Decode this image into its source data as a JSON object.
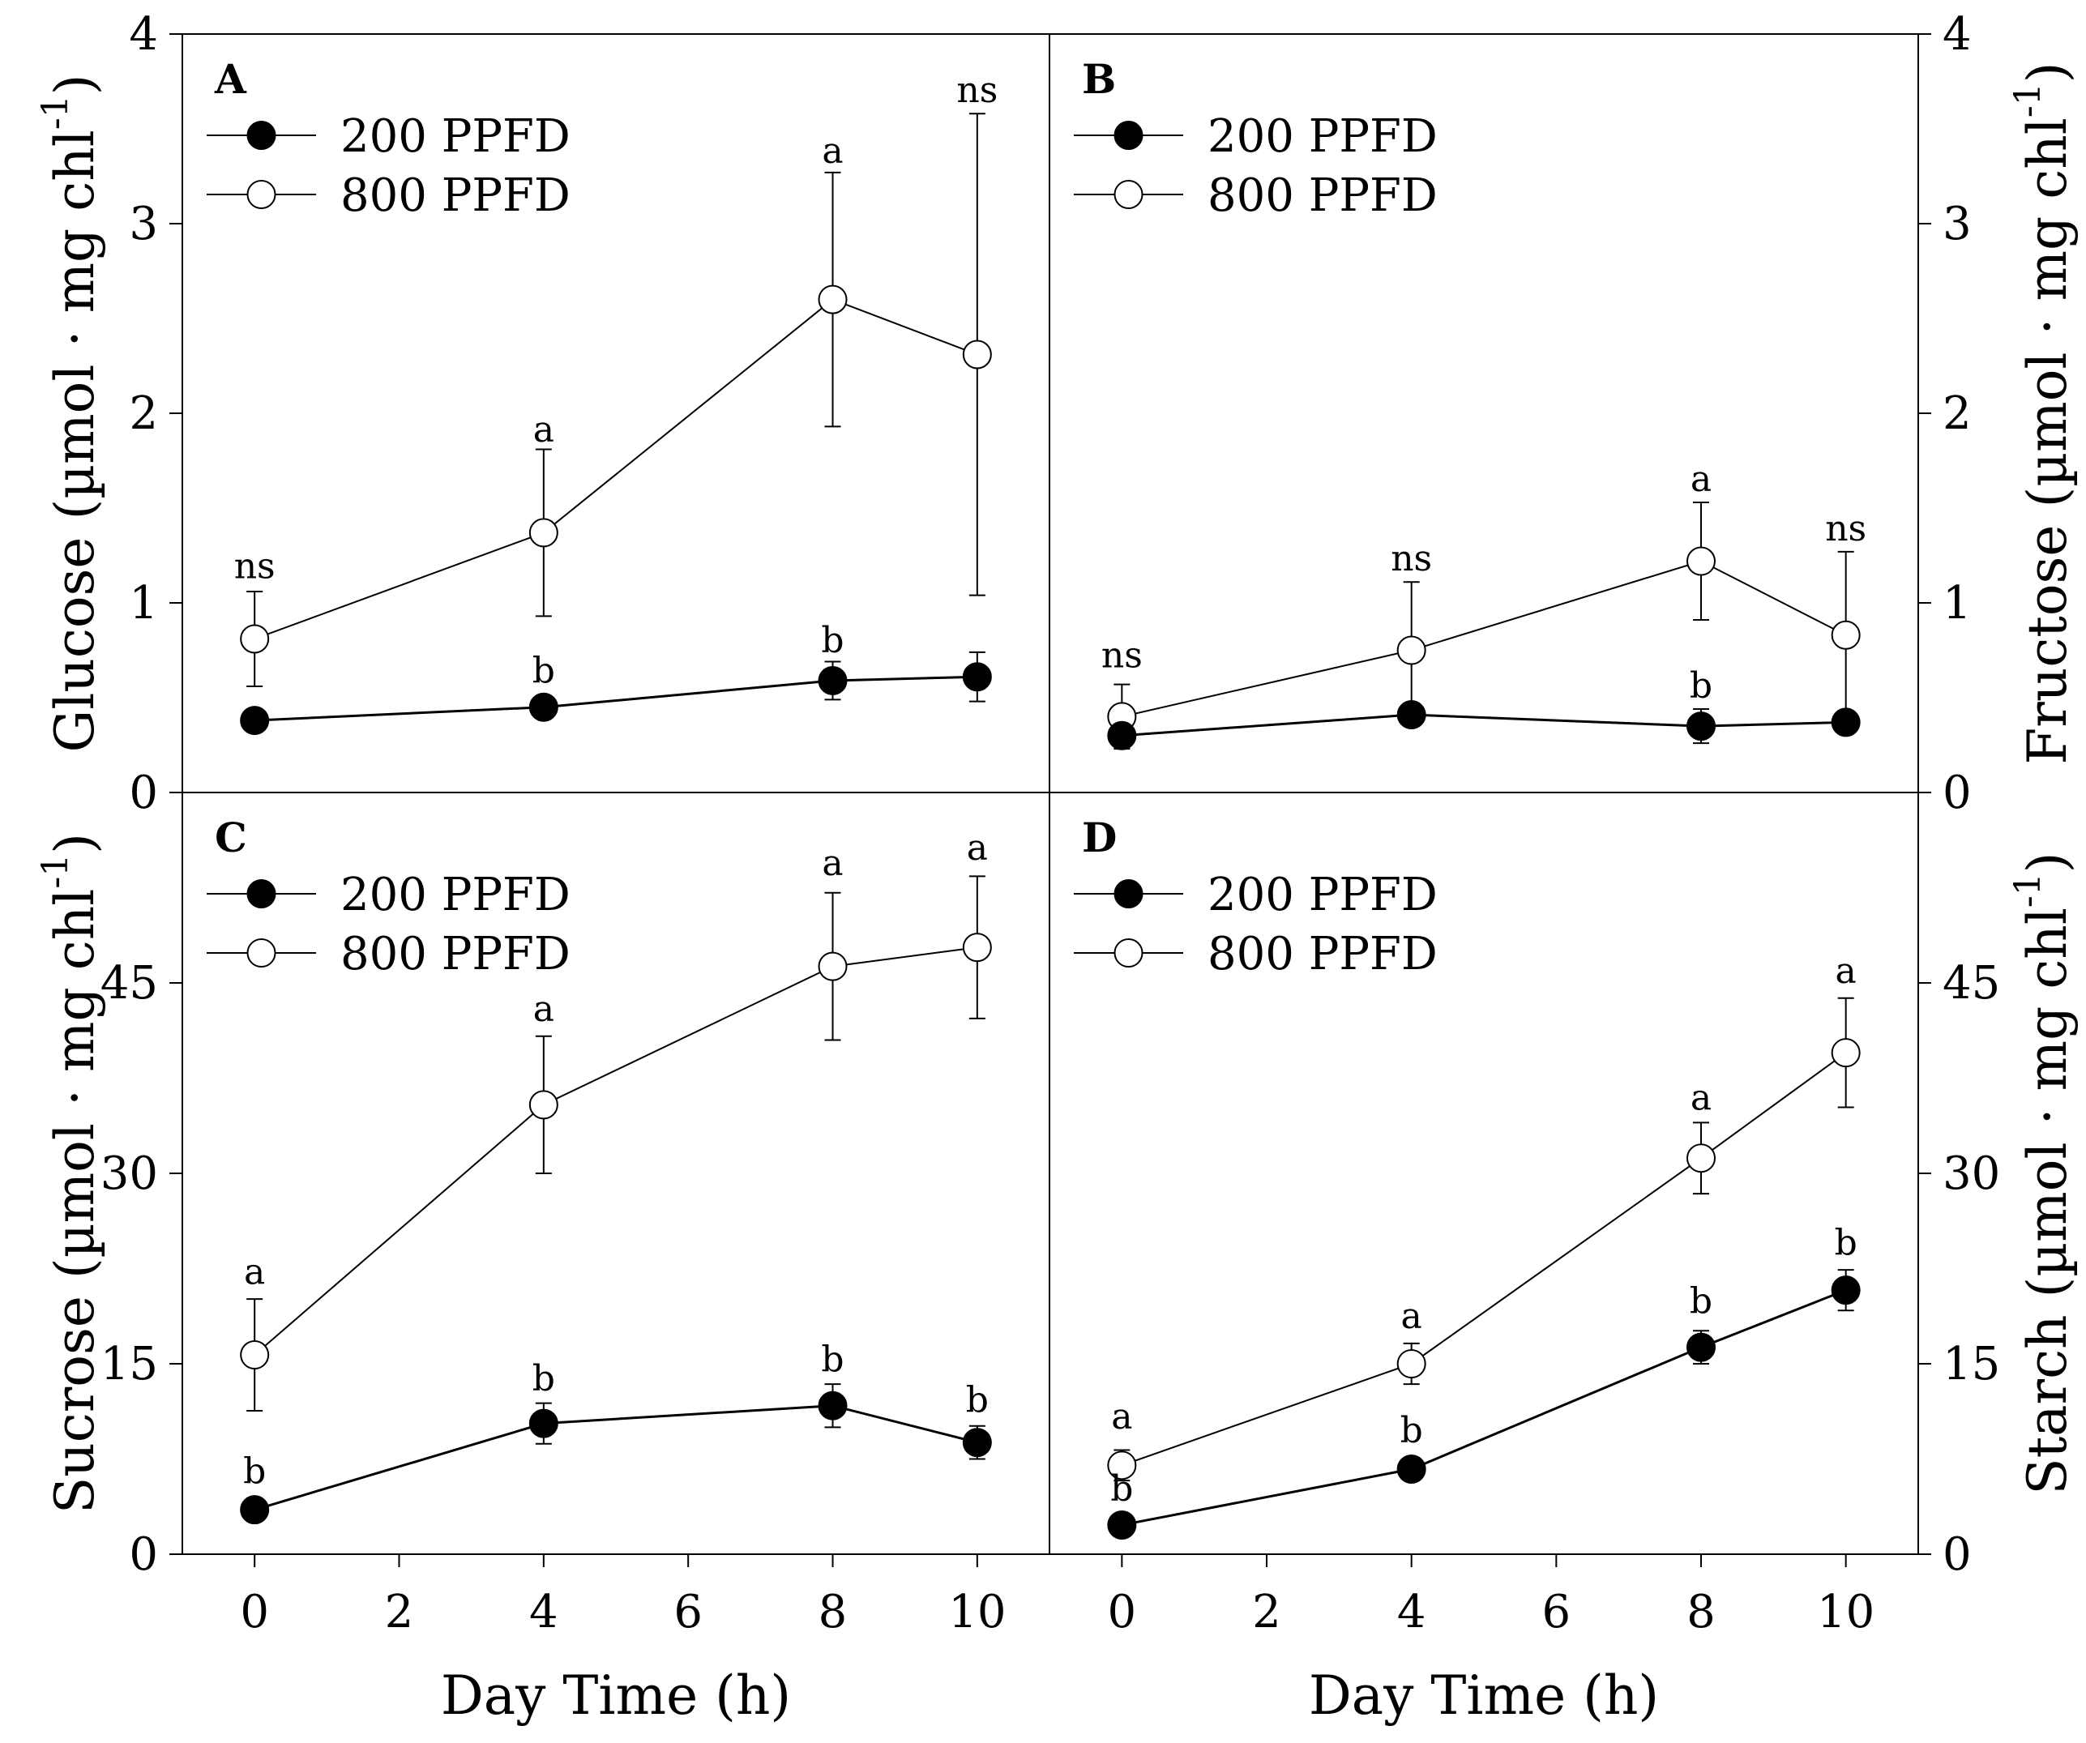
{
  "chart_data": [
    {
      "panel": "A",
      "type": "line",
      "position": "top-left",
      "ylabel": "Glucose (µmol · mg chl-1)",
      "ylabel_main": "Glucose (µmol · mg chl",
      "ylabel_sup": "-1",
      "ylabel_close": ")",
      "xlim": [
        -1,
        11
      ],
      "ylim": [
        0,
        4
      ],
      "yticks": [
        "0",
        "1",
        "2",
        "3",
        "4"
      ],
      "x": [
        0,
        4,
        8,
        10
      ],
      "series": [
        {
          "name": "200 PPFD",
          "marker": "filled",
          "values": [
            0.38,
            0.45,
            0.59,
            0.61
          ],
          "errors": [
            0.03,
            0.04,
            0.1,
            0.13
          ]
        },
        {
          "name": "800 PPFD",
          "marker": "open",
          "values": [
            0.81,
            1.37,
            2.6,
            2.31
          ],
          "errors": [
            0.25,
            0.44,
            0.67,
            1.27
          ]
        }
      ],
      "annotations": [
        {
          "x": 0,
          "y": 1.13,
          "text": "ns"
        },
        {
          "x": 4,
          "y": 1.85,
          "text": "a"
        },
        {
          "x": 4,
          "y": 0.58,
          "text": "b"
        },
        {
          "x": 8,
          "y": 3.32,
          "text": "a"
        },
        {
          "x": 8,
          "y": 0.74,
          "text": "b"
        },
        {
          "x": 10,
          "y": 3.64,
          "text": "ns"
        }
      ]
    },
    {
      "panel": "B",
      "type": "line",
      "position": "top-right",
      "ylabel": "Fructose (µmol · mg chl-1)",
      "ylabel_main": "Fructose (µmol · mg chl",
      "ylabel_sup": "-1",
      "ylabel_close": ")",
      "xlim": [
        -1,
        11
      ],
      "ylim": [
        0,
        4
      ],
      "yticks": [
        "0",
        "1",
        "2",
        "3",
        "4"
      ],
      "x": [
        0,
        4,
        8,
        10
      ],
      "series": [
        {
          "name": "200 PPFD",
          "marker": "filled",
          "values": [
            0.3,
            0.41,
            0.35,
            0.37
          ],
          "errors": [
            0.05,
            0.03,
            0.09,
            0.03
          ]
        },
        {
          "name": "800 PPFD",
          "marker": "open",
          "values": [
            0.4,
            0.75,
            1.22,
            0.83
          ],
          "errors": [
            0.17,
            0.36,
            0.31,
            0.44
          ]
        }
      ],
      "annotations": [
        {
          "x": 0,
          "y": 0.66,
          "text": "ns"
        },
        {
          "x": 4,
          "y": 1.17,
          "text": "ns"
        },
        {
          "x": 8,
          "y": 1.59,
          "text": "a"
        },
        {
          "x": 8,
          "y": 0.5,
          "text": "b"
        },
        {
          "x": 10,
          "y": 1.33,
          "text": "ns"
        }
      ]
    },
    {
      "panel": "C",
      "type": "line",
      "position": "bottom-left",
      "ylabel": "Sucrose (µmol · mg chl-1)",
      "ylabel_main": "Sucrose (µmol · mg chl",
      "ylabel_sup": "-1",
      "ylabel_close": ")",
      "xlabel": "Day Time (h)",
      "xlim": [
        -1,
        11
      ],
      "xticks": [
        "0",
        "2",
        "4",
        "6",
        "8",
        "10"
      ],
      "ylim": [
        0,
        60
      ],
      "yticks": [
        "0",
        "15",
        "30",
        "45"
      ],
      "x": [
        0,
        4,
        8,
        10
      ],
      "series": [
        {
          "name": "200 PPFD",
          "marker": "filled",
          "values": [
            3.5,
            10.3,
            11.7,
            8.8
          ],
          "errors": [
            0.5,
            1.6,
            1.7,
            1.3
          ]
        },
        {
          "name": "800 PPFD",
          "marker": "open",
          "values": [
            15.7,
            35.4,
            46.3,
            47.8
          ],
          "errors": [
            4.4,
            5.4,
            5.8,
            5.6
          ]
        }
      ],
      "annotations": [
        {
          "x": 0,
          "y": 21.3,
          "text": "a"
        },
        {
          "x": 0,
          "y": 5.6,
          "text": "b"
        },
        {
          "x": 4,
          "y": 42.0,
          "text": "a"
        },
        {
          "x": 4,
          "y": 12.9,
          "text": "b"
        },
        {
          "x": 8,
          "y": 53.5,
          "text": "a"
        },
        {
          "x": 8,
          "y": 14.4,
          "text": "b"
        },
        {
          "x": 10,
          "y": 54.7,
          "text": "a"
        },
        {
          "x": 10,
          "y": 11.2,
          "text": "b"
        }
      ]
    },
    {
      "panel": "D",
      "type": "line",
      "position": "bottom-right",
      "ylabel": "Starch (µmol · mg chl-1)",
      "ylabel_main": "Starch (µmol · mg chl",
      "ylabel_sup": "-1",
      "ylabel_close": ")",
      "xlabel": "Day Time (h)",
      "xlim": [
        -1,
        11
      ],
      "xticks": [
        "0",
        "2",
        "4",
        "6",
        "8",
        "10"
      ],
      "ylim": [
        0,
        60
      ],
      "yticks": [
        "0",
        "15",
        "30",
        "45"
      ],
      "x": [
        0,
        4,
        8,
        10
      ],
      "series": [
        {
          "name": "200 PPFD",
          "marker": "filled",
          "values": [
            2.3,
            6.7,
            16.3,
            20.8
          ],
          "errors": [
            0.3,
            0.4,
            1.3,
            1.6
          ]
        },
        {
          "name": "800 PPFD",
          "marker": "open",
          "values": [
            7.0,
            15.0,
            31.2,
            39.5
          ],
          "errors": [
            1.2,
            1.6,
            2.8,
            4.3
          ]
        }
      ],
      "annotations": [
        {
          "x": 0,
          "y": 9.9,
          "text": "a"
        },
        {
          "x": 0,
          "y": 4.2,
          "text": "b"
        },
        {
          "x": 4,
          "y": 17.8,
          "text": "a"
        },
        {
          "x": 4,
          "y": 8.8,
          "text": "b"
        },
        {
          "x": 8,
          "y": 35.0,
          "text": "a"
        },
        {
          "x": 8,
          "y": 19.0,
          "text": "b"
        },
        {
          "x": 10,
          "y": 45.0,
          "text": "a"
        },
        {
          "x": 10,
          "y": 23.6,
          "text": "b"
        }
      ]
    }
  ],
  "legend": {
    "filled_label": "200 PPFD",
    "open_label": "800 PPFD"
  },
  "colors": {
    "ink": "#000000",
    "background": "#ffffff"
  }
}
